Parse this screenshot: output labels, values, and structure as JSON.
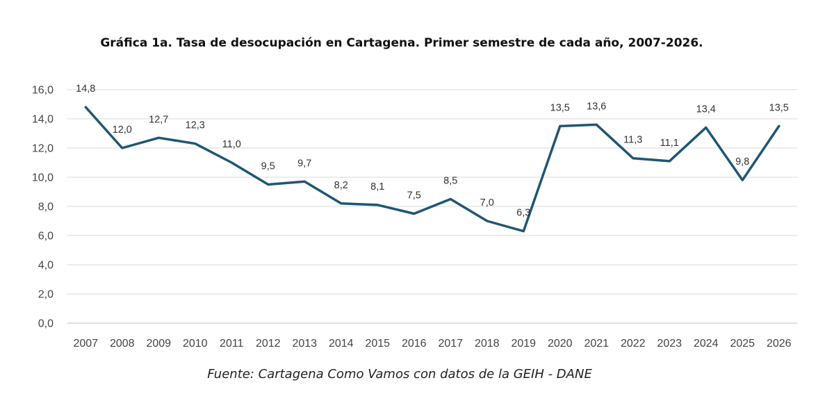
{
  "chart_data": {
    "type": "line",
    "title": "Gráfica 1a. Tasa de desocupación en Cartagena. Primer semestre de cada año, 2007-2026.",
    "source": "Fuente: Cartagena Como Vamos con datos de la GEIH - DANE",
    "categories": [
      "2007",
      "2008",
      "2009",
      "2010",
      "2011",
      "2012",
      "2013",
      "2014",
      "2015",
      "2016",
      "2017",
      "2018",
      "2019",
      "2020",
      "2021",
      "2022",
      "2023",
      "2024",
      "2025",
      "2026"
    ],
    "series": [
      {
        "values": [
          14.8,
          12.0,
          12.7,
          12.3,
          11.0,
          9.5,
          9.7,
          8.2,
          8.1,
          7.5,
          8.5,
          7.0,
          6.3,
          13.5,
          13.6,
          11.3,
          11.1,
          13.4,
          9.8,
          13.5
        ],
        "labels": [
          "14,8",
          "12,0",
          "12,7",
          "12,3",
          "11,0",
          "9,5",
          "9,7",
          "8,2",
          "8,1",
          "7,5",
          "8,5",
          "7,0",
          "6,3",
          "13,5",
          "13,6",
          "11,3",
          "11,1",
          "13,4",
          "9,8",
          "13,5"
        ],
        "color": "#1f5673"
      }
    ],
    "y_ticks": [
      "0,0",
      "2,0",
      "4,0",
      "6,0",
      "8,0",
      "10,0",
      "12,0",
      "14,0",
      "16,0"
    ],
    "ylim": [
      0,
      16
    ],
    "grid": true,
    "legend": "none"
  }
}
